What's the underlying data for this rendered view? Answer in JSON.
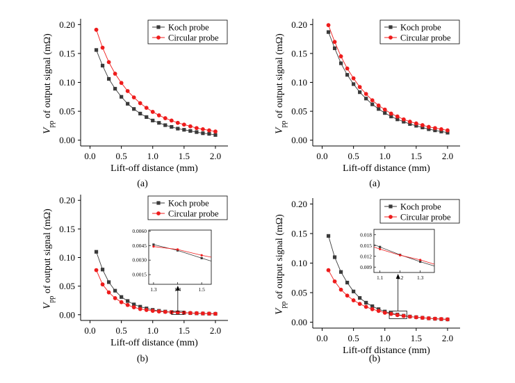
{
  "figure": {
    "colors": {
      "koch": "#3a3a3a",
      "circular": "#ee1c1c",
      "axis": "#000000"
    },
    "marker_shapes": {
      "koch": "square",
      "circular": "circle"
    }
  },
  "chart_data": [
    {
      "type": "line",
      "caption": "(a)",
      "xlabel": "Lift-off distance (mm)",
      "ylabel_main": "V",
      "ylabel_sub": "pp",
      "ylabel_rest": " of output signal (mΩ)",
      "xlim": [
        -0.15,
        2.2
      ],
      "ylim": [
        -0.01,
        0.21
      ],
      "xticks": [
        "0.0",
        "0.5",
        "1.0",
        "1.5",
        "2.0"
      ],
      "yticks": [
        "0.00",
        "0.05",
        "0.10",
        "0.15",
        "0.20"
      ],
      "legend_position": "top-right",
      "x": [
        0.1,
        0.2,
        0.3,
        0.4,
        0.5,
        0.6,
        0.7,
        0.8,
        0.9,
        1.0,
        1.1,
        1.2,
        1.3,
        1.4,
        1.5,
        1.6,
        1.7,
        1.8,
        1.9,
        2.0
      ],
      "series": [
        {
          "name": "Koch probe",
          "marker": "square",
          "values": [
            0.156,
            0.129,
            0.106,
            0.089,
            0.075,
            0.063,
            0.054,
            0.046,
            0.04,
            0.034,
            0.03,
            0.026,
            0.023,
            0.02,
            0.018,
            0.016,
            0.014,
            0.012,
            0.011,
            0.009
          ]
        },
        {
          "name": "Circular probe",
          "marker": "circle",
          "values": [
            0.191,
            0.16,
            0.135,
            0.115,
            0.099,
            0.085,
            0.074,
            0.064,
            0.056,
            0.049,
            0.043,
            0.038,
            0.034,
            0.03,
            0.027,
            0.024,
            0.021,
            0.019,
            0.017,
            0.015
          ]
        }
      ]
    },
    {
      "type": "line",
      "caption": "(a)",
      "xlabel": "Lift-off distance (mm)",
      "ylabel_main": "V",
      "ylabel_sub": "pp",
      "ylabel_rest": " of output signal (mΩ)",
      "xlim": [
        -0.15,
        2.2
      ],
      "ylim": [
        -0.01,
        0.21
      ],
      "xticks": [
        "0.0",
        "0.5",
        "1.0",
        "1.5",
        "2.0"
      ],
      "yticks": [
        "0.00",
        "0.05",
        "0.10",
        "0.15",
        "0.20"
      ],
      "legend_position": "top-right",
      "x": [
        0.1,
        0.2,
        0.3,
        0.4,
        0.5,
        0.6,
        0.7,
        0.8,
        0.9,
        1.0,
        1.1,
        1.2,
        1.3,
        1.4,
        1.5,
        1.6,
        1.7,
        1.8,
        1.9,
        2.0
      ],
      "series": [
        {
          "name": "Koch probe",
          "marker": "square",
          "values": [
            0.187,
            0.159,
            0.133,
            0.113,
            0.097,
            0.083,
            0.072,
            0.062,
            0.054,
            0.047,
            0.041,
            0.036,
            0.032,
            0.028,
            0.025,
            0.022,
            0.019,
            0.017,
            0.015,
            0.013
          ]
        },
        {
          "name": "Circular probe",
          "marker": "circle",
          "values": [
            0.199,
            0.17,
            0.145,
            0.124,
            0.107,
            0.092,
            0.08,
            0.069,
            0.06,
            0.053,
            0.046,
            0.041,
            0.036,
            0.032,
            0.029,
            0.026,
            0.023,
            0.021,
            0.019,
            0.017
          ]
        }
      ]
    },
    {
      "type": "line",
      "caption": "(b)",
      "xlabel": "Lift-off distance (mm)",
      "ylabel_main": "V",
      "ylabel_sub": "pp",
      "ylabel_rest": " of output signal (mΩ)",
      "xlim": [
        -0.15,
        2.2
      ],
      "ylim": [
        -0.01,
        0.21
      ],
      "xticks": [
        "0.0",
        "0.5",
        "1.0",
        "1.5",
        "2.0"
      ],
      "yticks": [
        "0.00",
        "0.05",
        "0.10",
        "0.15",
        "0.20"
      ],
      "legend_position": "top-right",
      "x": [
        0.1,
        0.2,
        0.3,
        0.4,
        0.5,
        0.6,
        0.7,
        0.8,
        0.9,
        1.0,
        1.1,
        1.2,
        1.3,
        1.4,
        1.5,
        1.6,
        1.7,
        1.8,
        1.9,
        2.0
      ],
      "series": [
        {
          "name": "Koch probe",
          "marker": "square",
          "values": [
            0.11,
            0.079,
            0.057,
            0.042,
            0.031,
            0.024,
            0.018,
            0.014,
            0.011,
            0.0085,
            0.0068,
            0.0055,
            0.0046,
            0.004,
            0.0034,
            0.0028,
            0.0024,
            0.0021,
            0.0018,
            0.0016
          ]
        },
        {
          "name": "Circular probe",
          "marker": "circle",
          "values": [
            0.078,
            0.053,
            0.039,
            0.029,
            0.022,
            0.017,
            0.013,
            0.01,
            0.0083,
            0.0068,
            0.0057,
            0.0049,
            0.0044,
            0.0041,
            0.0036,
            0.0031,
            0.0027,
            0.0023,
            0.002,
            0.0017
          ]
        }
      ],
      "inset": {
        "xlim": [
          1.28,
          1.54
        ],
        "ylim": [
          0.0005,
          0.0061
        ],
        "xticks": [
          "1.3",
          "1.4",
          "1.5"
        ],
        "yticks": [
          "0.0015",
          "0.0030",
          "0.0045",
          "0.0060"
        ],
        "x": [
          1.3,
          1.4,
          1.5,
          1.54
        ],
        "series": [
          {
            "name": "Koch probe",
            "values": [
              0.0046,
              0.004,
              0.0032,
              0.0029
            ]
          },
          {
            "name": "Circular probe",
            "values": [
              0.0044,
              0.0041,
              0.0035,
              0.0033
            ]
          }
        ],
        "zoom_x": [
          1.3,
          1.5
        ],
        "zoom_y": [
          0.0005,
          0.006
        ]
      }
    },
    {
      "type": "line",
      "caption": "(b)",
      "xlabel": "Lift-off distance (mm)",
      "ylabel_main": "V",
      "ylabel_sub": "pp",
      "ylabel_rest": " of output signal (mΩ)",
      "xlim": [
        -0.15,
        2.2
      ],
      "ylim": [
        -0.01,
        0.21
      ],
      "xticks": [
        "0.0",
        "0.5",
        "1.0",
        "1.5",
        "2.0"
      ],
      "yticks": [
        "0.00",
        "0.05",
        "0.10",
        "0.15",
        "0.20"
      ],
      "legend_position": "top-right",
      "x": [
        0.1,
        0.2,
        0.3,
        0.4,
        0.5,
        0.6,
        0.7,
        0.8,
        0.9,
        1.0,
        1.1,
        1.2,
        1.3,
        1.4,
        1.5,
        1.6,
        1.7,
        1.8,
        1.9,
        2.0
      ],
      "series": [
        {
          "name": "Koch probe",
          "marker": "square",
          "values": [
            0.146,
            0.11,
            0.085,
            0.067,
            0.052,
            0.041,
            0.033,
            0.027,
            0.022,
            0.018,
            0.015,
            0.013,
            0.011,
            0.0095,
            0.0085,
            0.0075,
            0.0065,
            0.0058,
            0.0052,
            0.0047
          ]
        },
        {
          "name": "Circular probe",
          "marker": "circle",
          "values": [
            0.088,
            0.069,
            0.055,
            0.045,
            0.037,
            0.031,
            0.026,
            0.022,
            0.019,
            0.016,
            0.014,
            0.012,
            0.0105,
            0.0093,
            0.0083,
            0.0074,
            0.0066,
            0.0059,
            0.0053,
            0.0048
          ]
        }
      ],
      "inset": {
        "xlim": [
          1.07,
          1.37
        ],
        "ylim": [
          0.0075,
          0.0195
        ],
        "xticks": [
          "1.1",
          "1.2",
          "1.3"
        ],
        "yticks": [
          "0.009",
          "0.012",
          "0.015",
          "0.018"
        ],
        "x": [
          1.07,
          1.1,
          1.2,
          1.3,
          1.37
        ],
        "series": [
          {
            "name": "Koch probe",
            "values": [
              0.0153,
              0.0146,
              0.0124,
              0.0105,
              0.0093
            ]
          },
          {
            "name": "Circular probe",
            "values": [
              0.0146,
              0.014,
              0.0123,
              0.011,
              0.0098
            ]
          }
        ],
        "zoom_x": [
          1.07,
          1.35
        ],
        "zoom_y": [
          0.006,
          0.019
        ]
      }
    }
  ]
}
